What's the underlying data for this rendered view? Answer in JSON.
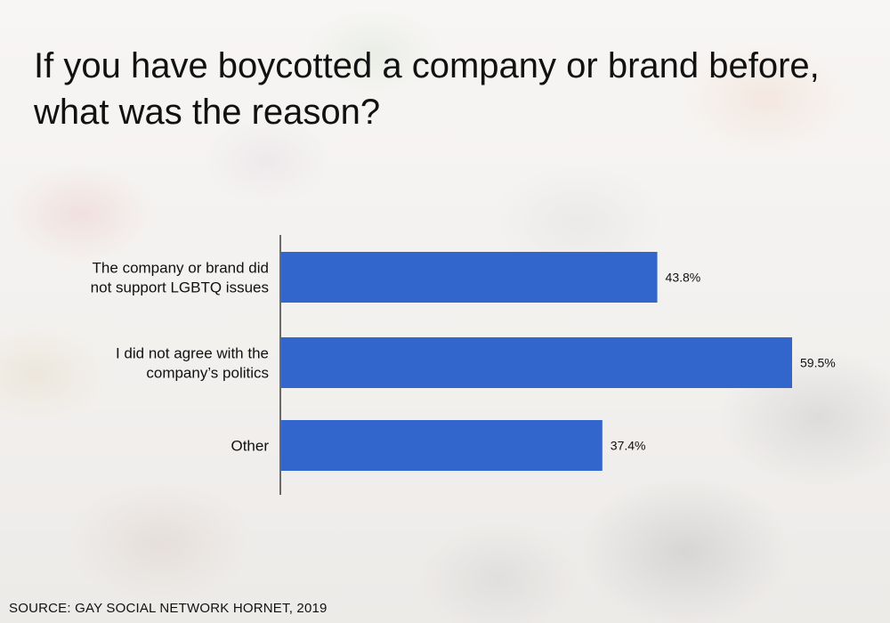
{
  "title": "If you have boycotted a company or brand before, what was the reason?",
  "source": "SOURCE: GAY SOCIAL NETWORK HORNET, 2019",
  "chart_data": {
    "type": "bar",
    "orientation": "horizontal",
    "categories": [
      "The company or brand did not support LGBTQ issues",
      "I did not agree with the company’s politics",
      "Other"
    ],
    "category_lines": [
      [
        "The company or brand did",
        "not support LGBTQ issues"
      ],
      [
        "I did not agree with the",
        "company’s politics"
      ],
      [
        "Other"
      ]
    ],
    "values": [
      43.8,
      59.5,
      37.4
    ],
    "value_labels": [
      "43.8%",
      "59.5%",
      "37.4%"
    ],
    "value_unit": "%",
    "xlim": [
      0,
      59.5
    ],
    "grid": false,
    "bar_color": "#3366cc"
  }
}
